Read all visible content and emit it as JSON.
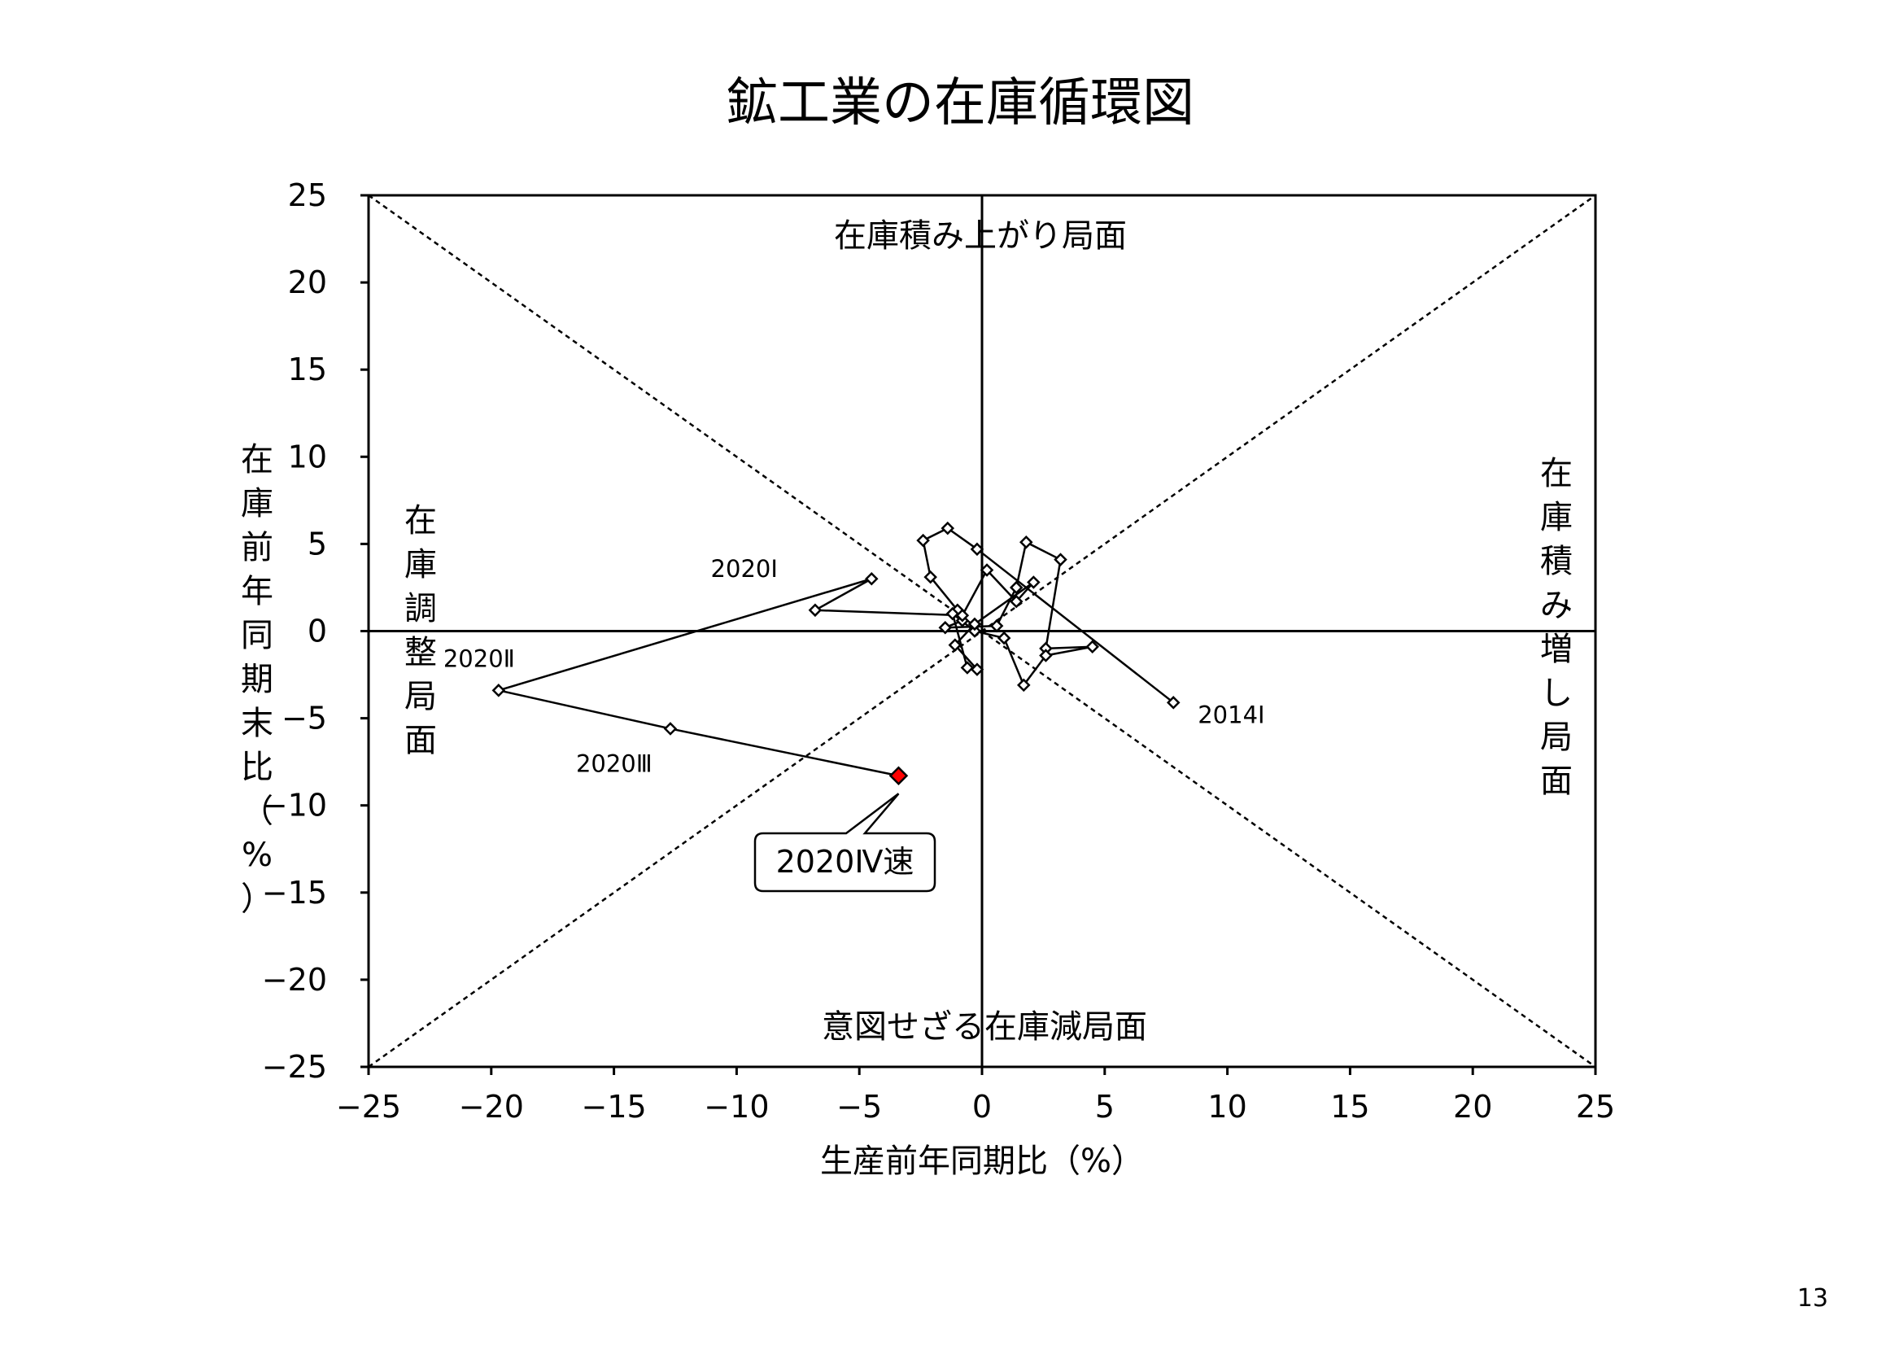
{
  "page": {
    "title": "鉱工業の在庫循環図",
    "page_number": "13"
  },
  "chart_data": {
    "type": "scatter",
    "title": "鉱工業の在庫循環図",
    "xlabel": "生産前年同期比（%）",
    "ylabel": "在庫前年同期末比（%）",
    "xlim": [
      -25,
      25
    ],
    "ylim": [
      -25,
      25
    ],
    "xticks": [
      "−25",
      "−20",
      "−15",
      "−10",
      "−5",
      "0",
      "5",
      "10",
      "15",
      "20",
      "25"
    ],
    "yticks": [
      "25",
      "20",
      "15",
      "10",
      "5",
      "0",
      "−5",
      "−10",
      "−15",
      "−20",
      "−25"
    ],
    "grid": false,
    "reference_lines": [
      {
        "from": [
          -25,
          25
        ],
        "to": [
          25,
          -25
        ],
        "style": "dotted"
      },
      {
        "from": [
          -25,
          -25
        ],
        "to": [
          25,
          25
        ],
        "style": "dotted"
      }
    ],
    "phases": {
      "top": "在庫積み上がり局面",
      "bottom": "意図せざる在庫減局面",
      "left": "在庫調整局面",
      "right": "在庫積み増し局面"
    },
    "series": [
      {
        "points": [
          [
            7.8,
            -4.1
          ],
          [
            -0.2,
            4.7
          ],
          [
            -1.4,
            5.9
          ],
          [
            -2.4,
            5.2
          ],
          [
            -2.1,
            3.1
          ],
          [
            -1.0,
            1.2
          ],
          [
            -0.8,
            0.6
          ],
          [
            -1.5,
            0.2
          ],
          [
            0.6,
            0.3
          ],
          [
            1.4,
            2.5
          ],
          [
            1.8,
            5.1
          ],
          [
            3.2,
            4.1
          ],
          [
            2.6,
            -1.0
          ],
          [
            4.5,
            -0.9
          ],
          [
            2.6,
            -1.4
          ],
          [
            1.7,
            -3.1
          ],
          [
            0.9,
            -0.4
          ],
          [
            -0.3,
            0.0
          ],
          [
            -1.2,
            1.0
          ],
          [
            -0.6,
            -2.1
          ],
          [
            -0.2,
            -2.2
          ],
          [
            -1.1,
            -0.8
          ],
          [
            -0.3,
            0.4
          ],
          [
            2.1,
            2.8
          ],
          [
            1.4,
            1.7
          ],
          [
            0.2,
            3.5
          ],
          [
            -0.8,
            0.9
          ],
          [
            -6.8,
            1.2
          ],
          [
            -4.5,
            3.0
          ],
          [
            -19.7,
            -3.4
          ],
          [
            -12.7,
            -5.6
          ],
          [
            -3.4,
            -8.3
          ]
        ],
        "marker_color": "#ffffff",
        "highlight_color": "#ff0000"
      }
    ],
    "annotations": [
      {
        "text": "2014Ⅰ",
        "x": 7.8,
        "y": -4.1
      },
      {
        "text": "2020Ⅰ",
        "x": -6.8,
        "y": 1.2
      },
      {
        "text": "2020Ⅱ",
        "x": -19.7,
        "y": -3.4
      },
      {
        "text": "2020Ⅲ",
        "x": -12.7,
        "y": -5.6
      }
    ],
    "callout": {
      "text": "2020Ⅳ速",
      "x": -3.4,
      "y": -8.3
    }
  }
}
